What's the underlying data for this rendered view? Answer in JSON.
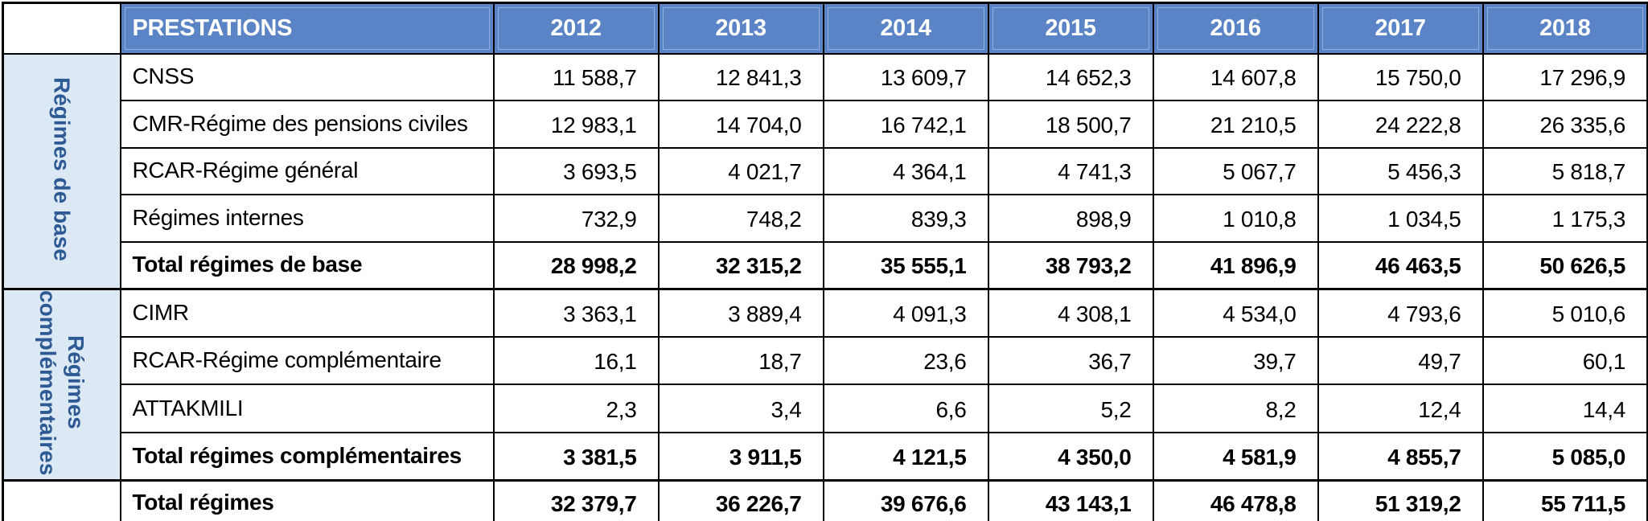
{
  "colors": {
    "header_bg": "#5b84c6",
    "header_text": "#ffffff",
    "group_bg": "#dce9f5",
    "group_text": "#2d5a94",
    "border": "#000000"
  },
  "table": {
    "header": {
      "prestations": "PRESTATIONS",
      "years": [
        "2012",
        "2013",
        "2014",
        "2015",
        "2016",
        "2017",
        "2018"
      ]
    },
    "groups": [
      {
        "label": "Régimes de base"
      },
      {
        "label": "Régimes complémentaires"
      }
    ],
    "rows": [
      {
        "label": "CNSS",
        "values": [
          "11 588,7",
          "12 841,3",
          "13 609,7",
          "14 652,3",
          "14 607,8",
          "15 750,0",
          "17 296,9"
        ]
      },
      {
        "label": "CMR-Régime des pensions civiles",
        "values": [
          "12 983,1",
          "14 704,0",
          "16 742,1",
          "18 500,7",
          "21 210,5",
          "24 222,8",
          "26 335,6"
        ]
      },
      {
        "label": "RCAR-Régime général",
        "values": [
          "3 693,5",
          "4 021,7",
          "4 364,1",
          "4 741,3",
          "5 067,7",
          "5 456,3",
          "5 818,7"
        ]
      },
      {
        "label": "Régimes internes",
        "values": [
          "732,9",
          "748,2",
          "839,3",
          "898,9",
          "1 010,8",
          "1 034,5",
          "1 175,3"
        ]
      },
      {
        "label": "Total régimes de base",
        "values": [
          "28 998,2",
          "32 315,2",
          "35 555,1",
          "38 793,2",
          "41 896,9",
          "46 463,5",
          "50 626,5"
        ]
      },
      {
        "label": "CIMR",
        "values": [
          "3 363,1",
          "3 889,4",
          "4 091,3",
          "4 308,1",
          "4 534,0",
          "4 793,6",
          "5 010,6"
        ]
      },
      {
        "label": "RCAR-Régime complémentaire",
        "values": [
          "16,1",
          "18,7",
          "23,6",
          "36,7",
          "39,7",
          "49,7",
          "60,1"
        ]
      },
      {
        "label": "ATTAKMILI",
        "values": [
          "2,3",
          "3,4",
          "6,6",
          "5,2",
          "8,2",
          "12,4",
          "14,4"
        ]
      },
      {
        "label": "Total régimes complémentaires",
        "values": [
          "3 381,5",
          "3 911,5",
          "4 121,5",
          "4 350,0",
          "4 581,9",
          "4 855,7",
          "5 085,0"
        ]
      },
      {
        "label": "Total régimes",
        "values": [
          "32 379,7",
          "36 226,7",
          "39 676,6",
          "43 143,1",
          "46 478,8",
          "51 319,2",
          "55 711,5"
        ]
      }
    ]
  },
  "chart_data": {
    "type": "table",
    "title": "PRESTATIONS",
    "categories": [
      "2012",
      "2013",
      "2014",
      "2015",
      "2016",
      "2017",
      "2018"
    ],
    "series": [
      {
        "name": "CNSS",
        "group": "Régimes de base",
        "values": [
          11588.7,
          12841.3,
          13609.7,
          14652.3,
          14607.8,
          15750.0,
          17296.9
        ]
      },
      {
        "name": "CMR-Régime des pensions civiles",
        "group": "Régimes de base",
        "values": [
          12983.1,
          14704.0,
          16742.1,
          18500.7,
          21210.5,
          24222.8,
          26335.6
        ]
      },
      {
        "name": "RCAR-Régime général",
        "group": "Régimes de base",
        "values": [
          3693.5,
          4021.7,
          4364.1,
          4741.3,
          5067.7,
          5456.3,
          5818.7
        ]
      },
      {
        "name": "Régimes internes",
        "group": "Régimes de base",
        "values": [
          732.9,
          748.2,
          839.3,
          898.9,
          1010.8,
          1034.5,
          1175.3
        ]
      },
      {
        "name": "Total régimes de base",
        "group": "Régimes de base",
        "is_total": true,
        "values": [
          28998.2,
          32315.2,
          35555.1,
          38793.2,
          41896.9,
          46463.5,
          50626.5
        ]
      },
      {
        "name": "CIMR",
        "group": "Régimes complémentaires",
        "values": [
          3363.1,
          3889.4,
          4091.3,
          4308.1,
          4534.0,
          4793.6,
          5010.6
        ]
      },
      {
        "name": "RCAR-Régime complémentaire",
        "group": "Régimes complémentaires",
        "values": [
          16.1,
          18.7,
          23.6,
          36.7,
          39.7,
          49.7,
          60.1
        ]
      },
      {
        "name": "ATTAKMILI",
        "group": "Régimes complémentaires",
        "values": [
          2.3,
          3.4,
          6.6,
          5.2,
          8.2,
          12.4,
          14.4
        ]
      },
      {
        "name": "Total régimes complémentaires",
        "group": "Régimes complémentaires",
        "is_total": true,
        "values": [
          3381.5,
          3911.5,
          4121.5,
          4350.0,
          4581.9,
          4855.7,
          5085.0
        ]
      },
      {
        "name": "Total régimes",
        "is_total": true,
        "values": [
          32379.7,
          36226.7,
          39676.6,
          43143.1,
          46478.8,
          51319.2,
          55711.5
        ]
      }
    ],
    "number_format": "fr-FR, one decimal, space thousands separator, comma decimal"
  }
}
